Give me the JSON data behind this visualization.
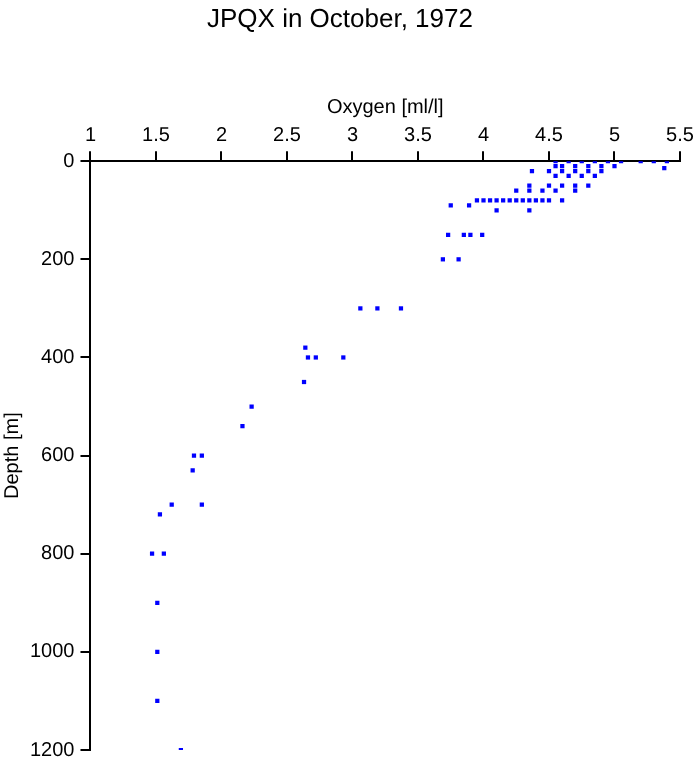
{
  "chart_data": {
    "type": "scatter",
    "title": "JPQX in October, 1972",
    "xlabel": "Oxygen [ml/l]",
    "ylabel": "Depth [m]",
    "xlim": [
      1,
      5.5
    ],
    "xticks": [
      1,
      1.5,
      2,
      2.5,
      3,
      3.5,
      4,
      4.5,
      5,
      5.5
    ],
    "ylim": [
      1200,
      0
    ],
    "yticks": [
      0,
      200,
      400,
      600,
      800,
      1000,
      1200
    ],
    "grid": false,
    "legend": false,
    "marker": "square",
    "series": [
      {
        "color": "#0000ff",
        "x": [
          4.55,
          4.65,
          4.75,
          4.85,
          4.95,
          5.05,
          5.2,
          5.3,
          5.4,
          5.38,
          4.55,
          4.6,
          4.7,
          4.8,
          4.9,
          5.0,
          4.5,
          4.6,
          4.7,
          4.8,
          4.9,
          4.37,
          4.55,
          4.65,
          4.75,
          4.85,
          4.35,
          4.5,
          4.6,
          4.7,
          4.8,
          4.25,
          4.35,
          4.45,
          4.55,
          4.7,
          3.95,
          4.0,
          4.05,
          4.1,
          4.15,
          4.2,
          4.25,
          4.3,
          4.35,
          4.4,
          4.45,
          4.5,
          4.6,
          3.75,
          3.89,
          4.1,
          4.35,
          3.73,
          3.85,
          3.9,
          3.99,
          3.69,
          3.81,
          3.06,
          3.19,
          3.37,
          2.64,
          2.66,
          2.72,
          2.93,
          2.63,
          2.23,
          2.16,
          1.79,
          1.85,
          1.78,
          1.62,
          1.85,
          1.53,
          1.47,
          1.56,
          1.51,
          1.51,
          1.51,
          1.69
        ],
        "values": [
          0,
          0,
          0,
          0,
          0,
          0,
          0,
          0,
          0,
          14,
          10,
          10,
          10,
          10,
          10,
          10,
          20,
          20,
          20,
          20,
          20,
          20,
          30,
          30,
          30,
          30,
          50,
          50,
          50,
          50,
          50,
          60,
          60,
          60,
          60,
          60,
          80,
          80,
          80,
          80,
          80,
          80,
          80,
          80,
          80,
          80,
          80,
          80,
          80,
          90,
          90,
          100,
          100,
          150,
          150,
          150,
          150,
          200,
          200,
          300,
          300,
          300,
          380,
          400,
          400,
          400,
          450,
          500,
          540,
          600,
          600,
          630,
          700,
          700,
          720,
          800,
          800,
          900,
          1000,
          1100,
          1200
        ]
      }
    ]
  }
}
